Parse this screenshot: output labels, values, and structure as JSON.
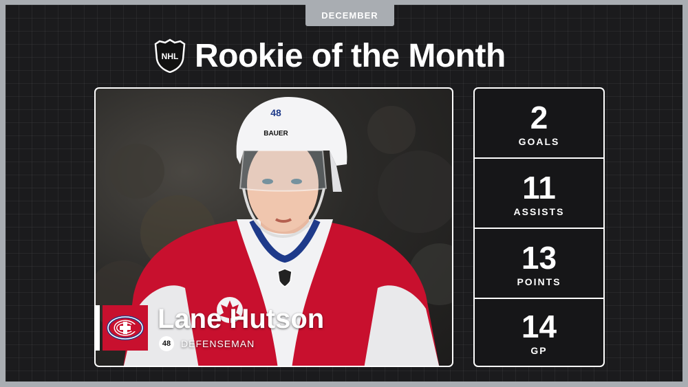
{
  "header": {
    "month": "DECEMBER",
    "title": "Rookie of the Month",
    "league_logo_text": "NHL"
  },
  "player": {
    "name": "Lane Hutson",
    "number": "48",
    "position": "DEFENSEMAN",
    "team_logo": "canadiens-logo",
    "helmet_brand": "BAUER",
    "helmet_number": "48"
  },
  "stats": [
    {
      "value": "2",
      "label": "GOALS"
    },
    {
      "value": "11",
      "label": "ASSISTS"
    },
    {
      "value": "13",
      "label": "POINTS"
    },
    {
      "value": "14",
      "label": "GP"
    }
  ],
  "colors": {
    "background": "#1b1b1d",
    "tab": "#a9adb2",
    "team_red": "#c8102e",
    "team_blue": "#1e3a8a",
    "text": "#ffffff"
  }
}
